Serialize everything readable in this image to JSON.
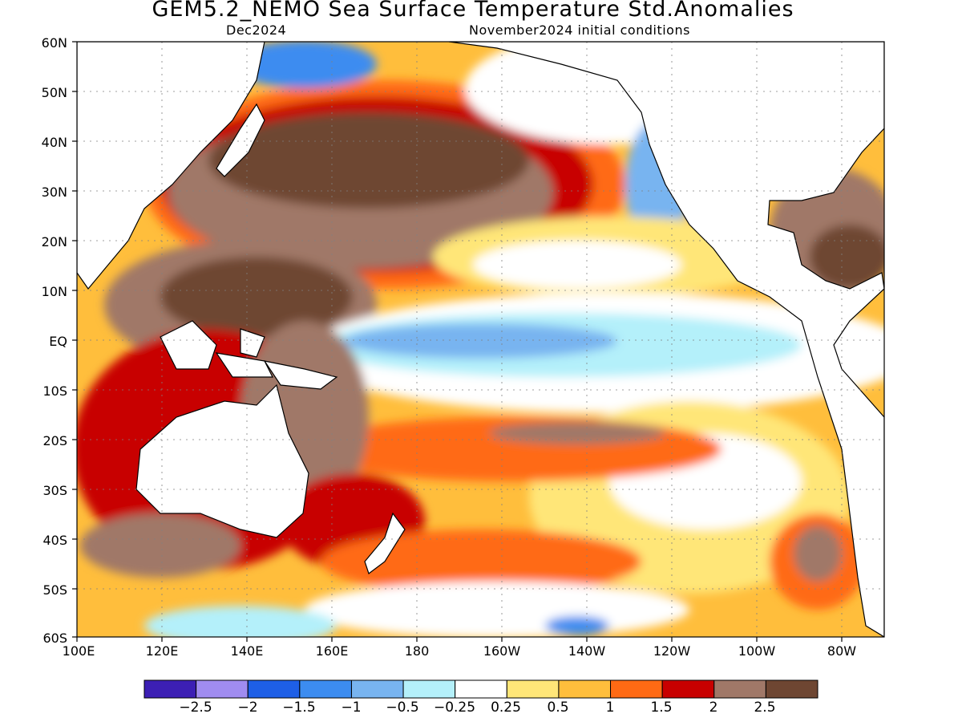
{
  "title": "GEM5.2_NEMO Sea Surface Temperature Std.Anomalies",
  "subtitle_left": "Dec2024",
  "subtitle_right": "November2024 initial conditions",
  "map": {
    "lat_labels": [
      "60N",
      "50N",
      "40N",
      "30N",
      "20N",
      "10N",
      "EQ",
      "10S",
      "20S",
      "30S",
      "40S",
      "50S",
      "60S"
    ],
    "lon_labels": [
      "100E",
      "120E",
      "140E",
      "160E",
      "180",
      "160W",
      "140W",
      "120W",
      "100W",
      "80W"
    ],
    "extent": {
      "lon_min": 100,
      "lon_max": 290,
      "lat_min": -60,
      "lat_max": 60
    }
  },
  "colorbar": {
    "colors": [
      "#3c1fb4",
      "#a08cf0",
      "#1e5fe6",
      "#3c8cf0",
      "#78b4f0",
      "#b4f0fa",
      "#ffffff",
      "#ffe678",
      "#ffbe3c",
      "#ff6a14",
      "#c80000",
      "#a07868",
      "#6e4632"
    ],
    "labels": [
      "−2.5",
      "−2",
      "−1.5",
      "−1",
      "−0.5",
      "−0.25",
      "0.25",
      "0.5",
      "1",
      "1.5",
      "2",
      "2.5"
    ]
  }
}
